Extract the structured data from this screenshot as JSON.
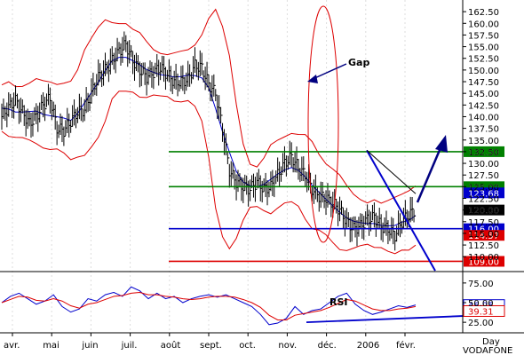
{
  "chart_data": [
    {
      "type": "line",
      "style": "ohlc bars with bollinger bands and moving average",
      "ylim": [
        107,
        165
      ],
      "yticks": [
        "162.50",
        "160.00",
        "157.50",
        "155.00",
        "152.50",
        "150.00",
        "147.50",
        "145.00",
        "142.50",
        "140.00",
        "137.50",
        "135.00",
        "132.50",
        "130.00",
        "127.50",
        "125.00",
        "122.50",
        "120.00",
        "117.50",
        "115.00",
        "112.50",
        "110.00"
      ],
      "x_labels": [
        "avr.",
        "mai",
        "juin",
        "juil.",
        "août",
        "sept.",
        "oct.",
        "nov.",
        "déc.",
        "2006",
        "févr."
      ],
      "price_series": {
        "t": [
          0,
          4,
          8,
          12,
          16,
          20,
          24,
          28,
          32,
          36,
          40,
          44,
          48,
          52,
          56,
          60,
          64,
          68,
          72,
          76,
          80,
          84,
          88,
          92,
          96,
          100,
          104,
          108,
          112,
          116,
          120,
          124,
          128,
          132,
          136,
          140,
          144,
          148,
          152,
          156,
          160,
          164,
          168,
          172,
          176,
          180,
          184,
          188,
          192,
          196,
          200,
          204,
          208,
          212,
          216,
          220,
          224,
          228,
          232,
          236,
          240
        ],
        "close": [
          140.0,
          142.0,
          143.5,
          141.0,
          138.5,
          140.0,
          142.5,
          144.0,
          137.5,
          137.0,
          139.0,
          141.0,
          141.5,
          145.0,
          148.5,
          150.0,
          152.0,
          154.0,
          155.5,
          152.0,
          150.0,
          148.5,
          149.5,
          150.5,
          149.0,
          147.5,
          147.5,
          148.0,
          151.0,
          150.5,
          147.0,
          145.0,
          137.5,
          128.5,
          126.0,
          125.0,
          124.5,
          126.0,
          124.5,
          125.0,
          127.5,
          130.0,
          131.5,
          129.0,
          127.5,
          124.5,
          123.0,
          122.5,
          121.5,
          120.0,
          117.5,
          116.0,
          116.5,
          118.0,
          118.5,
          116.5,
          116.0,
          114.5,
          117.5,
          119.0,
          120.0
        ]
      },
      "bollinger_bands": [
        "upper",
        "lower"
      ],
      "moving_average": true,
      "annotations": {
        "gap_label": "Gap",
        "support_lines": [
          {
            "value": 132.5,
            "label": "132.50",
            "color": "#008000"
          },
          {
            "value": 125.0,
            "label": "125.00",
            "color": "#008000"
          },
          {
            "value": 116.0,
            "label": "116.00",
            "color": "#0000cc"
          },
          {
            "value": 109.0,
            "label": "109.00",
            "color": "#dd0000"
          }
        ],
        "price_boxes": [
          {
            "value": 123.68,
            "label": "123.68",
            "color": "#0000cc"
          },
          {
            "value": 120.0,
            "label": "120.00",
            "color": "#000000"
          },
          {
            "value": 114.57,
            "label": "114.57",
            "color": "#dd0000"
          }
        ]
      }
    },
    {
      "type": "line",
      "title": "RSI",
      "ylim": [
        15,
        85
      ],
      "yticks": [
        "75.00",
        "50.00",
        "25.00"
      ],
      "series": [
        {
          "values": [
            50,
            58,
            62,
            55,
            48,
            52,
            60,
            45,
            38,
            42,
            55,
            52,
            60,
            63,
            58,
            70,
            65,
            55,
            62,
            55,
            58,
            50,
            55,
            58,
            60,
            57,
            60,
            55,
            50,
            45,
            35,
            22,
            24,
            30,
            45,
            35,
            40,
            42,
            50,
            58,
            62,
            48,
            40,
            35,
            38,
            42,
            46,
            44,
            47
          ]
        },
        {
          "values": [
            50,
            54,
            58,
            57,
            53,
            52,
            55,
            52,
            46,
            43,
            48,
            50,
            54,
            58,
            59,
            62,
            63,
            60,
            60,
            58,
            57,
            55,
            54,
            55,
            57,
            58,
            58,
            57,
            54,
            50,
            44,
            34,
            28,
            28,
            34,
            36,
            38,
            40,
            44,
            49,
            54,
            52,
            47,
            42,
            40,
            40,
            42,
            43,
            45
          ]
        }
      ],
      "value_labels": [
        {
          "value": 46.95,
          "label": "46.95",
          "color": "#0000cc"
        },
        {
          "value": 39.31,
          "label": "39.31",
          "color": "#dd0000"
        }
      ]
    }
  ],
  "footer": {
    "period": "Day",
    "ticker": "VODAFONE"
  }
}
